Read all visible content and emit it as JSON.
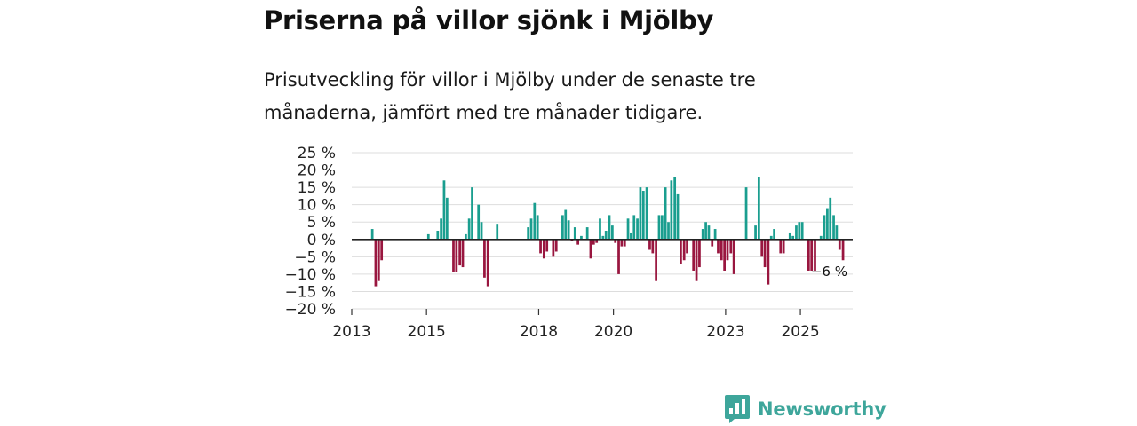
{
  "title": "Priserna på villor sjönk i Mjölby",
  "subtitle": "Prisutveckling för villor i Mjölby under de senaste tre månaderna, jämfört med tre månader tidigare.",
  "brand": "Newsworthy",
  "colors": {
    "positive": "#1a9e8f",
    "negative": "#99163f",
    "brand": "#3ea69b",
    "grid": "#dddddd"
  },
  "chart_data": {
    "type": "bar",
    "title": "",
    "xlabel": "",
    "ylabel": "",
    "ylim": [
      -20,
      25
    ],
    "yticks": [
      25,
      20,
      15,
      10,
      5,
      0,
      -5,
      -10,
      -15,
      -20
    ],
    "ytick_labels": [
      "25 %",
      "20 %",
      "15 %",
      "10 %",
      "5 %",
      "0 %",
      "−5 %",
      "−10 %",
      "−15 %",
      "−20 %"
    ],
    "xtick_labels": [
      {
        "label": "2013",
        "year": 2013
      },
      {
        "label": "2015",
        "year": 2015
      },
      {
        "label": "2018",
        "year": 2018
      },
      {
        "label": "2020",
        "year": 2020
      },
      {
        "label": "2023",
        "year": 2023
      },
      {
        "label": "2025",
        "year": 2025
      }
    ],
    "x_start": 2013.0,
    "x_end": 2026.4,
    "units": "% change vs three months earlier",
    "series": [
      {
        "name": "Prisutveckling",
        "points": [
          {
            "x": 2013.55,
            "y": 3
          },
          {
            "x": 2013.64,
            "y": -13.5
          },
          {
            "x": 2013.72,
            "y": -12
          },
          {
            "x": 2013.8,
            "y": -6
          },
          {
            "x": 2015.05,
            "y": 1.5
          },
          {
            "x": 2015.3,
            "y": 2.5
          },
          {
            "x": 2015.39,
            "y": 6
          },
          {
            "x": 2015.47,
            "y": 17
          },
          {
            "x": 2015.55,
            "y": 12
          },
          {
            "x": 2015.72,
            "y": -9.5
          },
          {
            "x": 2015.8,
            "y": -9.5
          },
          {
            "x": 2015.89,
            "y": -7.5
          },
          {
            "x": 2015.97,
            "y": -8
          },
          {
            "x": 2016.05,
            "y": 1.5
          },
          {
            "x": 2016.14,
            "y": 6
          },
          {
            "x": 2016.22,
            "y": 15
          },
          {
            "x": 2016.39,
            "y": 10
          },
          {
            "x": 2016.47,
            "y": 5
          },
          {
            "x": 2016.55,
            "y": -11
          },
          {
            "x": 2016.64,
            "y": -13.5
          },
          {
            "x": 2016.89,
            "y": 4.5
          },
          {
            "x": 2017.72,
            "y": 3.5
          },
          {
            "x": 2017.8,
            "y": 6
          },
          {
            "x": 2017.89,
            "y": 10.5
          },
          {
            "x": 2017.97,
            "y": 7
          },
          {
            "x": 2018.05,
            "y": -4
          },
          {
            "x": 2018.14,
            "y": -5.5
          },
          {
            "x": 2018.22,
            "y": -3.5
          },
          {
            "x": 2018.39,
            "y": -5
          },
          {
            "x": 2018.47,
            "y": -3.5
          },
          {
            "x": 2018.64,
            "y": 7
          },
          {
            "x": 2018.72,
            "y": 8.5
          },
          {
            "x": 2018.8,
            "y": 5.5
          },
          {
            "x": 2018.89,
            "y": -0.5
          },
          {
            "x": 2018.97,
            "y": 3.5
          },
          {
            "x": 2019.05,
            "y": -1.5
          },
          {
            "x": 2019.14,
            "y": 1
          },
          {
            "x": 2019.3,
            "y": 3.5
          },
          {
            "x": 2019.39,
            "y": -5.5
          },
          {
            "x": 2019.47,
            "y": -1.5
          },
          {
            "x": 2019.55,
            "y": -1
          },
          {
            "x": 2019.64,
            "y": 6
          },
          {
            "x": 2019.72,
            "y": 1
          },
          {
            "x": 2019.8,
            "y": 2.5
          },
          {
            "x": 2019.89,
            "y": 7
          },
          {
            "x": 2019.97,
            "y": 4
          },
          {
            "x": 2020.05,
            "y": -1
          },
          {
            "x": 2020.14,
            "y": -10
          },
          {
            "x": 2020.22,
            "y": -2
          },
          {
            "x": 2020.3,
            "y": -2
          },
          {
            "x": 2020.39,
            "y": 6
          },
          {
            "x": 2020.47,
            "y": 2
          },
          {
            "x": 2020.55,
            "y": 7
          },
          {
            "x": 2020.64,
            "y": 6
          },
          {
            "x": 2020.72,
            "y": 15
          },
          {
            "x": 2020.8,
            "y": 14
          },
          {
            "x": 2020.89,
            "y": 15
          },
          {
            "x": 2020.97,
            "y": -3
          },
          {
            "x": 2021.05,
            "y": -4
          },
          {
            "x": 2021.14,
            "y": -12
          },
          {
            "x": 2021.22,
            "y": 7
          },
          {
            "x": 2021.3,
            "y": 7
          },
          {
            "x": 2021.39,
            "y": 15
          },
          {
            "x": 2021.47,
            "y": 5
          },
          {
            "x": 2021.55,
            "y": 17
          },
          {
            "x": 2021.64,
            "y": 18
          },
          {
            "x": 2021.72,
            "y": 13
          },
          {
            "x": 2021.8,
            "y": -7
          },
          {
            "x": 2021.89,
            "y": -6
          },
          {
            "x": 2021.97,
            "y": -4
          },
          {
            "x": 2022.14,
            "y": -9
          },
          {
            "x": 2022.22,
            "y": -12
          },
          {
            "x": 2022.3,
            "y": -8
          },
          {
            "x": 2022.39,
            "y": 3
          },
          {
            "x": 2022.47,
            "y": 5
          },
          {
            "x": 2022.55,
            "y": 4
          },
          {
            "x": 2022.64,
            "y": -2
          },
          {
            "x": 2022.72,
            "y": 3
          },
          {
            "x": 2022.8,
            "y": -4
          },
          {
            "x": 2022.89,
            "y": -6
          },
          {
            "x": 2022.97,
            "y": -9
          },
          {
            "x": 2023.05,
            "y": -6
          },
          {
            "x": 2023.14,
            "y": -4
          },
          {
            "x": 2023.22,
            "y": -10
          },
          {
            "x": 2023.55,
            "y": 15
          },
          {
            "x": 2023.8,
            "y": 4
          },
          {
            "x": 2023.89,
            "y": 18
          },
          {
            "x": 2023.97,
            "y": -5
          },
          {
            "x": 2024.05,
            "y": -8
          },
          {
            "x": 2024.14,
            "y": -13
          },
          {
            "x": 2024.22,
            "y": 1
          },
          {
            "x": 2024.3,
            "y": 3
          },
          {
            "x": 2024.47,
            "y": -4
          },
          {
            "x": 2024.55,
            "y": -4
          },
          {
            "x": 2024.72,
            "y": 2
          },
          {
            "x": 2024.8,
            "y": 1
          },
          {
            "x": 2024.89,
            "y": 4
          },
          {
            "x": 2024.97,
            "y": 5
          },
          {
            "x": 2025.05,
            "y": 5
          },
          {
            "x": 2025.22,
            "y": -9
          },
          {
            "x": 2025.3,
            "y": -9
          },
          {
            "x": 2025.39,
            "y": -9
          },
          {
            "x": 2025.55,
            "y": 1
          },
          {
            "x": 2025.64,
            "y": 7
          },
          {
            "x": 2025.72,
            "y": 9
          },
          {
            "x": 2025.8,
            "y": 12
          },
          {
            "x": 2025.89,
            "y": 7
          },
          {
            "x": 2025.97,
            "y": 4
          },
          {
            "x": 2026.05,
            "y": -3
          },
          {
            "x": 2026.14,
            "y": -6
          }
        ]
      }
    ],
    "annotation": {
      "label": "−6 %",
      "value": -6
    }
  }
}
